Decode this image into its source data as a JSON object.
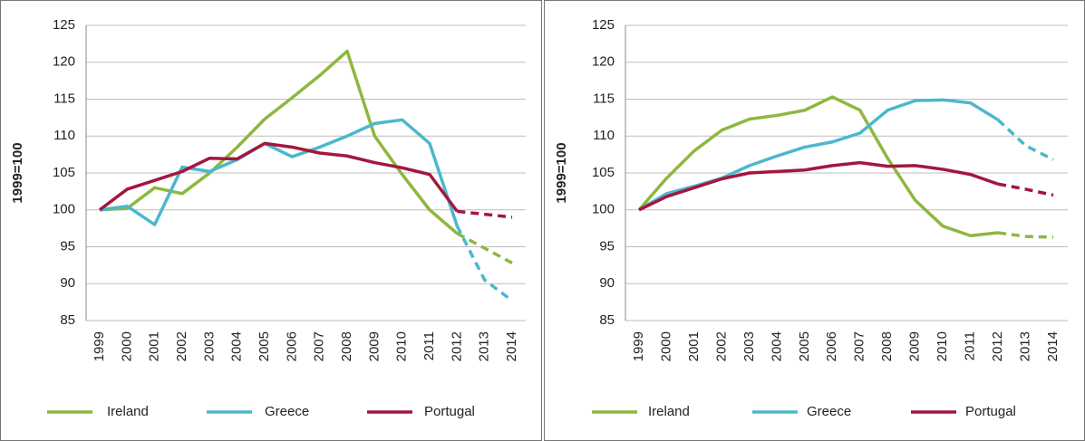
{
  "chart_data": [
    {
      "type": "line",
      "ylabel": "1999=100",
      "categories": [
        "1999",
        "2000",
        "2001",
        "2002",
        "2003",
        "2004",
        "2005",
        "2006",
        "2007",
        "2008",
        "2009",
        "2010",
        "2011",
        "2012",
        "2013",
        "2014"
      ],
      "dashed_from": "2012",
      "ylim": [
        85,
        125
      ],
      "yticks": [
        85,
        90,
        95,
        100,
        105,
        110,
        115,
        120,
        125
      ],
      "grid": true,
      "legend": "bottom",
      "series": [
        {
          "name": "Ireland",
          "color": "#8db83e",
          "values": [
            100,
            100.2,
            103,
            102.2,
            105,
            108.5,
            112.3,
            115.2,
            118.2,
            121.5,
            110,
            104.8,
            100,
            96.8,
            94.8,
            92.8
          ]
        },
        {
          "name": "Greece",
          "color": "#4bb8cc",
          "values": [
            100,
            100.5,
            98,
            105.8,
            105.2,
            106.8,
            109,
            107.2,
            108.5,
            110,
            111.7,
            112.2,
            109,
            97.8,
            90.5,
            87.7
          ]
        },
        {
          "name": "Portugal",
          "color": "#a3173e",
          "values": [
            100,
            102.8,
            104,
            105.2,
            107,
            106.9,
            109,
            108.5,
            107.7,
            107.3,
            106.4,
            105.7,
            104.8,
            99.8,
            99.4,
            99
          ]
        }
      ]
    },
    {
      "type": "line",
      "ylabel": "1999=100",
      "categories": [
        "1999",
        "2000",
        "2001",
        "2002",
        "2003",
        "2004",
        "2005",
        "2006",
        "2007",
        "2008",
        "2009",
        "2010",
        "2011",
        "2012",
        "2013",
        "2014"
      ],
      "dashed_from": "2012",
      "ylim": [
        85,
        125
      ],
      "yticks": [
        85,
        90,
        95,
        100,
        105,
        110,
        115,
        120,
        125
      ],
      "grid": true,
      "legend": "bottom",
      "series": [
        {
          "name": "Ireland",
          "color": "#8db83e",
          "values": [
            100,
            104.3,
            108,
            110.8,
            112.3,
            112.8,
            113.5,
            115.3,
            113.5,
            107,
            101.3,
            97.8,
            96.5,
            96.9,
            96.4,
            96.3
          ]
        },
        {
          "name": "Greece",
          "color": "#4bb8cc",
          "values": [
            100,
            102.2,
            103.2,
            104.3,
            106,
            107.3,
            108.5,
            109.2,
            110.4,
            113.5,
            114.8,
            114.9,
            114.5,
            112.2,
            108.7,
            106.8
          ]
        },
        {
          "name": "Portugal",
          "color": "#a3173e",
          "values": [
            100,
            101.8,
            103,
            104.2,
            105,
            105.2,
            105.4,
            106,
            106.4,
            105.9,
            106,
            105.5,
            104.8,
            103.5,
            102.8,
            102
          ]
        }
      ]
    }
  ]
}
